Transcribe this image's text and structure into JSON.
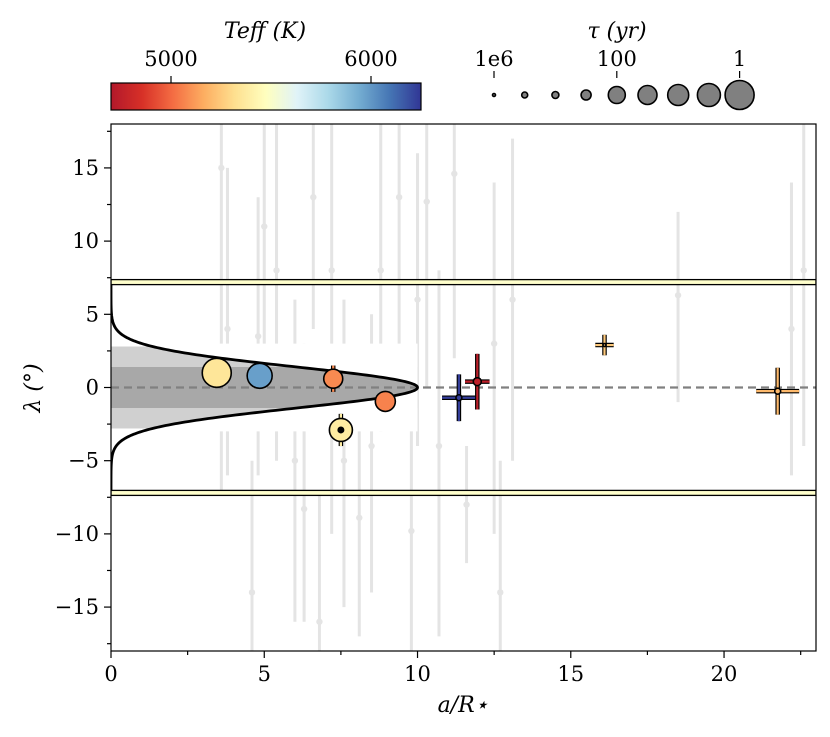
{
  "chart_data": {
    "type": "scatter",
    "xlabel": "a/R⋆",
    "ylabel": "λ (°)",
    "xlim": [
      0,
      23
    ],
    "ylim": [
      -18,
      18
    ],
    "x_ticks": [
      0,
      5,
      10,
      15,
      20
    ],
    "y_ticks": [
      -15,
      -10,
      -5,
      0,
      5,
      10,
      15
    ],
    "reference_line_y": 0,
    "band_limits": [
      -7.2,
      7.2
    ],
    "gaussian_envelope": {
      "sigma_deg": 1.4,
      "peak_x": 10.0
    },
    "shaded_bands_deg": [
      1.4,
      2.8
    ],
    "colorbar": {
      "label": "T_eff (K)",
      "ticks": [
        "5000",
        "6000"
      ],
      "tick_values": [
        5000,
        6000
      ],
      "range": [
        4700,
        6250
      ],
      "colors": [
        "#b2182b",
        "#d73027",
        "#f46d43",
        "#fdae61",
        "#fee090",
        "#ffffbf",
        "#e0f3f8",
        "#abd9e9",
        "#74add1",
        "#4575b4",
        "#313695"
      ]
    },
    "size_legend": {
      "label": "τ (yr)",
      "ticks": [
        "1e6",
        "100",
        "1"
      ],
      "marker_radii": [
        1.5,
        3,
        3.5,
        5,
        8.5,
        9.5,
        10.5,
        11.5,
        14.5
      ]
    },
    "background_points": [
      {
        "x": 3.6,
        "y": 15.0,
        "lo": -7,
        "hi": 24
      },
      {
        "x": 3.8,
        "y": 4.0,
        "lo": -6,
        "hi": 15
      },
      {
        "x": 4.6,
        "y": -14.0,
        "lo": -20,
        "hi": -5
      },
      {
        "x": 4.8,
        "y": 3.5,
        "lo": -6,
        "hi": 13
      },
      {
        "x": 5.0,
        "y": 11.0,
        "lo": 1,
        "hi": 22
      },
      {
        "x": 5.4,
        "y": 8.0,
        "lo": -5,
        "hi": 20
      },
      {
        "x": 6.0,
        "y": -5.0,
        "lo": -16,
        "hi": 6
      },
      {
        "x": 6.3,
        "y": -8.3,
        "lo": -16,
        "hi": 3
      },
      {
        "x": 6.6,
        "y": 13.0,
        "lo": 4,
        "hi": 20
      },
      {
        "x": 6.8,
        "y": -16.0,
        "lo": -19,
        "hi": -7
      },
      {
        "x": 7.2,
        "y": 8.0,
        "lo": -10,
        "hi": 20
      },
      {
        "x": 7.6,
        "y": -5.0,
        "lo": -15,
        "hi": 6
      },
      {
        "x": 8.1,
        "y": -8.9,
        "lo": -17,
        "hi": 2
      },
      {
        "x": 8.5,
        "y": -4.0,
        "lo": -14,
        "hi": 5
      },
      {
        "x": 8.8,
        "y": 8.0,
        "lo": -3,
        "hi": 18
      },
      {
        "x": 9.4,
        "y": 13.0,
        "lo": 2,
        "hi": 24
      },
      {
        "x": 9.8,
        "y": -9.8,
        "lo": -20,
        "hi": 1
      },
      {
        "x": 10.0,
        "y": 6.0,
        "lo": -4,
        "hi": 16
      },
      {
        "x": 10.3,
        "y": 12.7,
        "lo": 0,
        "hi": 24
      },
      {
        "x": 10.7,
        "y": -4.0,
        "lo": -17,
        "hi": 8
      },
      {
        "x": 11.2,
        "y": 14.6,
        "lo": 2,
        "hi": 24
      },
      {
        "x": 11.6,
        "y": -8.0,
        "lo": -12,
        "hi": -4
      },
      {
        "x": 12.5,
        "y": 3.0,
        "lo": -10,
        "hi": 14
      },
      {
        "x": 12.7,
        "y": -14.0,
        "lo": -22,
        "hi": -5
      },
      {
        "x": 13.1,
        "y": 6.0,
        "lo": -5,
        "hi": 17
      },
      {
        "x": 18.5,
        "y": 6.3,
        "lo": -1,
        "hi": 12
      },
      {
        "x": 22.2,
        "y": 4.0,
        "lo": -6,
        "hi": 14
      },
      {
        "x": 22.6,
        "y": 8.0,
        "lo": -4,
        "hi": 20
      }
    ],
    "highlighted_points": [
      {
        "x": 3.45,
        "y": 1.0,
        "teff": 5350,
        "r": 14.5,
        "xerr": 0,
        "yerr": 0
      },
      {
        "x": 4.85,
        "y": 0.8,
        "teff": 5980,
        "r": 12.5,
        "xerr": 0,
        "yerr": 0
      },
      {
        "x": 7.25,
        "y": 0.6,
        "teff": 5080,
        "r": 9.5,
        "xerr": 0,
        "yerr": 0.9
      },
      {
        "x": 8.95,
        "y": -0.95,
        "teff": 5060,
        "r": 10.0,
        "xerr": 0,
        "yerr": 0
      },
      {
        "x": 7.5,
        "y": -2.9,
        "teff": 5380,
        "r": 11.5,
        "xerr": 0,
        "yerr": 1.1,
        "core": true
      },
      {
        "x": 11.35,
        "y": -0.7,
        "teff": 6230,
        "r": 3.0,
        "xerr": 0.55,
        "yerr": 1.6
      },
      {
        "x": 11.95,
        "y": 0.4,
        "teff": 4750,
        "r": 4.0,
        "xerr": 0.4,
        "yerr": 1.9
      },
      {
        "x": 16.1,
        "y": 2.9,
        "teff": 5250,
        "r": 1.5,
        "xerr": 0.3,
        "yerr": 0.7
      },
      {
        "x": 21.75,
        "y": -0.25,
        "teff": 5200,
        "r": 3.0,
        "xerr": 0.7,
        "yerr": 1.6
      }
    ]
  }
}
